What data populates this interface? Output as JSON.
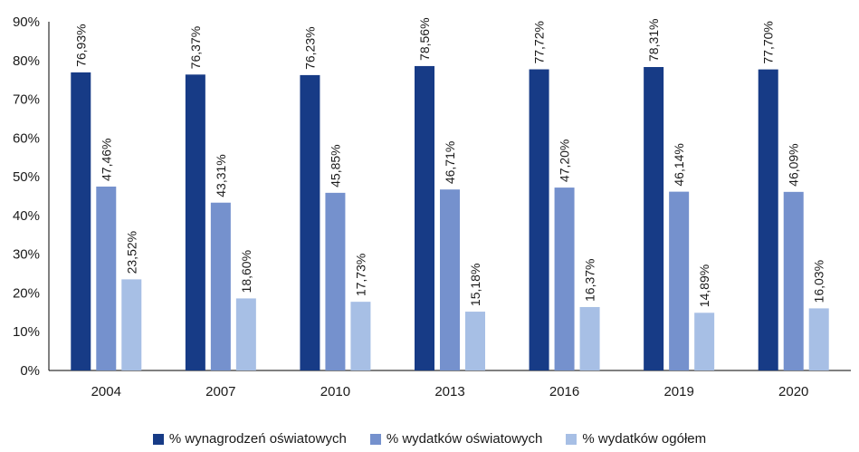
{
  "chart_data": {
    "type": "bar",
    "categories": [
      "2004",
      "2007",
      "2010",
      "2013",
      "2016",
      "2019",
      "2020"
    ],
    "series": [
      {
        "name": "% wynagrodzeń oświatowych",
        "color": "#173b86",
        "values": [
          76.93,
          76.37,
          76.23,
          78.56,
          77.72,
          78.31,
          77.7
        ],
        "labels": [
          "76,93%",
          "76,37%",
          "76,23%",
          "78,56%",
          "77,72%",
          "78,31%",
          "77,70%"
        ]
      },
      {
        "name": "% wydatków oświatowych",
        "color": "#7591cd",
        "values": [
          47.46,
          43.31,
          45.85,
          46.71,
          47.2,
          46.14,
          46.09
        ],
        "labels": [
          "47,46%",
          "43,31%",
          "45,85%",
          "46,71%",
          "47,20%",
          "46,14%",
          "46,09%"
        ]
      },
      {
        "name": "% wydatków ogółem",
        "color": "#a7bfe5",
        "values": [
          23.52,
          18.6,
          17.73,
          15.18,
          16.37,
          14.89,
          16.03
        ],
        "labels": [
          "23,52%",
          "18,60%",
          "17,73%",
          "15,18%",
          "16,37%",
          "14,89%",
          "16,03%"
        ]
      }
    ],
    "y_ticks": [
      "0%",
      "10%",
      "20%",
      "30%",
      "40%",
      "50%",
      "60%",
      "70%",
      "80%",
      "90%"
    ],
    "ylim": [
      0,
      90
    ],
    "grid": false,
    "legend_position": "bottom"
  }
}
